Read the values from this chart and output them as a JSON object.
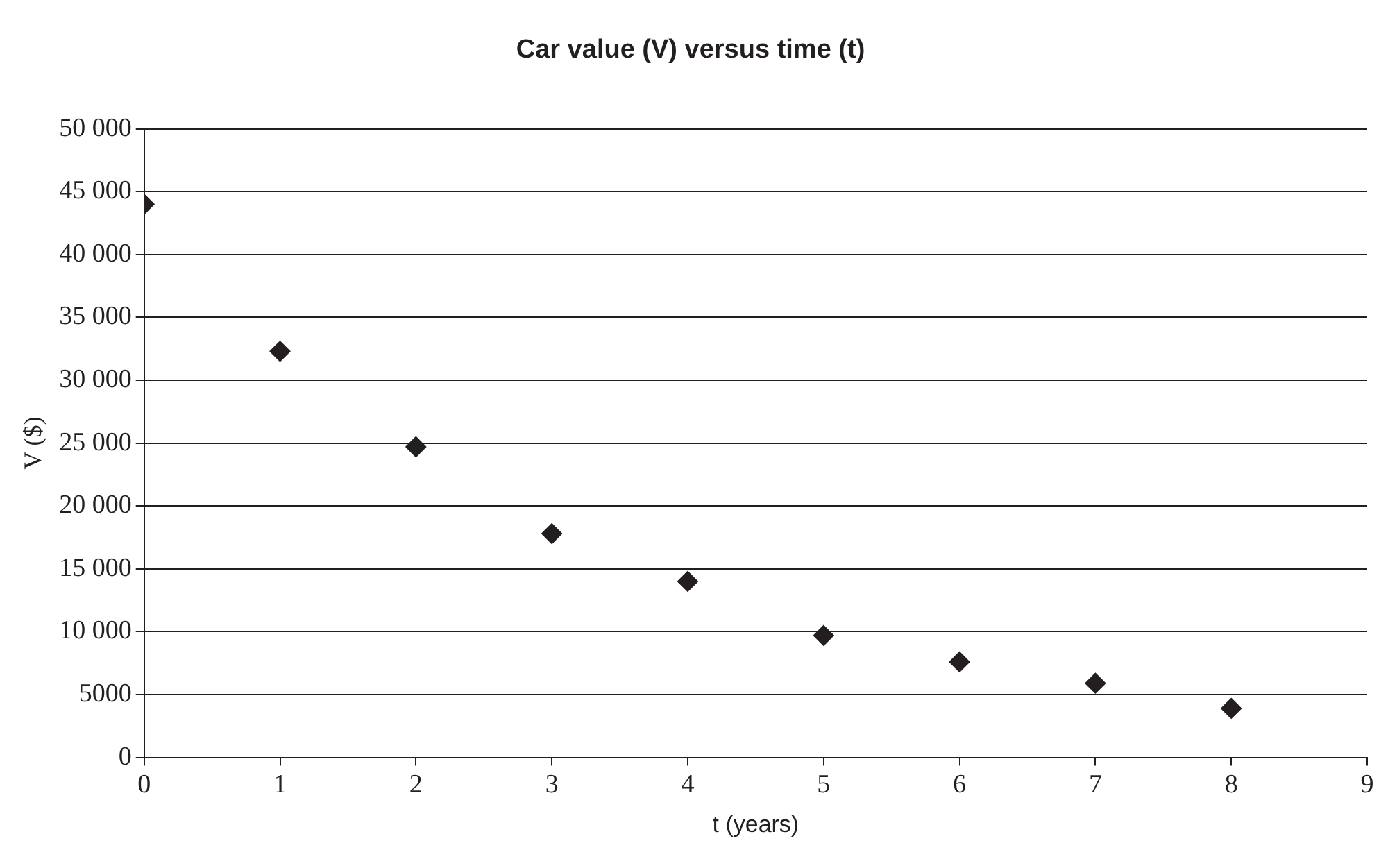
{
  "chart_data": {
    "type": "scatter",
    "title": "Car value (V) versus time (t)",
    "xlabel": "t (years)",
    "ylabel": "V ($)",
    "x": [
      0,
      1,
      2,
      3,
      4,
      5,
      6,
      7,
      8
    ],
    "series": [
      {
        "color": "#231f20",
        "values": [
          44000,
          32300,
          24700,
          17800,
          14000,
          9700,
          7600,
          5900,
          3900
        ]
      }
    ],
    "xlim": [
      0,
      9
    ],
    "xticks": [
      0,
      1,
      2,
      3,
      4,
      5,
      6,
      7,
      8,
      9
    ],
    "ylim": [
      0,
      50000
    ],
    "yticks": [
      0,
      5000,
      {
        "value": 10000,
        "label": "10 000"
      },
      {
        "value": 15000,
        "label": "15 000"
      },
      {
        "value": 20000,
        "label": "20 000"
      },
      {
        "value": 25000,
        "label": "25 000"
      },
      {
        "value": 30000,
        "label": "30 000"
      },
      {
        "value": 35000,
        "label": "35 000"
      },
      {
        "value": 40000,
        "label": "40 000"
      },
      {
        "value": 45000,
        "label": "45 000"
      },
      {
        "value": 50000,
        "label": "50 000"
      }
    ],
    "grid": "y",
    "marker": "diamond",
    "legend": false
  }
}
